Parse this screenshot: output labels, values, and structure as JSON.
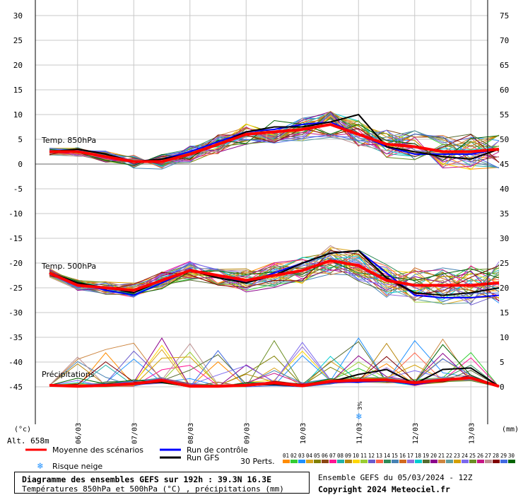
{
  "chart_data": {
    "type": "line",
    "x_dates": [
      "06/03",
      "07/03",
      "08/03",
      "09/03",
      "10/03",
      "11/03",
      "12/03",
      "13/03"
    ],
    "left_axis": {
      "unit_label": "(°c)",
      "ticks": [
        30,
        25,
        20,
        15,
        10,
        5,
        0,
        -5,
        -10,
        -15,
        -20,
        -25,
        -30,
        -35,
        -40,
        -45
      ],
      "range": [
        -45,
        30
      ]
    },
    "right_axis": {
      "unit_label": "(mm)",
      "ticks": [
        75,
        70,
        65,
        60,
        55,
        50,
        45,
        40,
        35,
        30,
        25,
        20,
        15,
        10,
        5,
        0
      ]
    },
    "panel_labels": {
      "t850": "Temp. 850hPa",
      "t500": "Temp. 500hPa",
      "precip": "Précipitations"
    },
    "altitude": "Alt. 658m",
    "snow_risk_annotation": "3%",
    "x_hours": [
      0,
      12,
      24,
      36,
      48,
      60,
      72,
      84,
      96,
      108,
      120,
      132,
      144,
      156,
      168,
      180,
      192
    ],
    "t850_mean": [
      2.5,
      2.5,
      1.5,
      0.5,
      0.5,
      2,
      4,
      6,
      6.5,
      7,
      8,
      6,
      4,
      3.5,
      2.5,
      2.5,
      3
    ],
    "t850_control": [
      2.5,
      2.5,
      1.5,
      0.5,
      1,
      2.5,
      4.5,
      6.5,
      7,
      8,
      8.5,
      6,
      3.5,
      2,
      2,
      2,
      3
    ],
    "t850_gfs": [
      2.5,
      3,
      2,
      0.5,
      1,
      2,
      4,
      6.5,
      7.5,
      7.5,
      8.5,
      10,
      3.5,
      2.5,
      1.5,
      1,
      3
    ],
    "t500_mean": [
      -22,
      -24.5,
      -25,
      -25.5,
      -23.5,
      -21.5,
      -22.5,
      -23.5,
      -22.5,
      -21.5,
      -19.5,
      -20.5,
      -23.5,
      -24.5,
      -24.5,
      -24.5,
      -24
    ],
    "t500_control": [
      -22,
      -24,
      -25.5,
      -26.5,
      -24,
      -21.5,
      -22.5,
      -24,
      -22,
      -20,
      -18,
      -17.5,
      -22,
      -26.5,
      -27,
      -27,
      -26.5
    ],
    "t500_gfs": [
      -22,
      -24,
      -25,
      -26,
      -23.5,
      -21.5,
      -23,
      -24,
      -22.5,
      -20,
      -18,
      -17.5,
      -23,
      -26,
      -26.5,
      -26,
      -25
    ],
    "precip_mean": [
      0.3,
      0.1,
      0.3,
      0.6,
      1.3,
      0.1,
      0.1,
      0.3,
      0.8,
      0.2,
      1.1,
      1.3,
      1.4,
      0.8,
      1.4,
      1.8,
      0.1
    ],
    "precip_control": [
      0.3,
      0.2,
      0.5,
      0.5,
      1.2,
      0.1,
      0.1,
      0.2,
      0.6,
      0.1,
      0.9,
      1.0,
      1.2,
      0.5,
      1.3,
      2.0,
      0.1
    ],
    "precip_gfs": [
      0.3,
      0.1,
      0.2,
      0.5,
      1.0,
      0.1,
      0.1,
      0.3,
      0.5,
      0.1,
      1.0,
      2.5,
      3.5,
      0.6,
      3.5,
      3.8,
      0.1
    ],
    "legend": {
      "mean": {
        "label": "Moyenne des scénarios",
        "color": "#ff0000"
      },
      "control": {
        "label": "Run de contrôle",
        "color": "#0000ff"
      },
      "gfs": {
        "label": "Run GFS",
        "color": "#000000"
      },
      "snow": {
        "label": "Risque neige"
      },
      "perts_label": "30 Perts.",
      "perts_ids": [
        "01",
        "02",
        "03",
        "04",
        "05",
        "06",
        "07",
        "08",
        "09",
        "10",
        "11",
        "12",
        "13",
        "14",
        "15",
        "16",
        "17",
        "18",
        "19",
        "20",
        "21",
        "22",
        "23",
        "24",
        "25",
        "26",
        "27",
        "28",
        "29",
        "30"
      ],
      "perts_colors": [
        "#ff8c00",
        "#32cd32",
        "#1e90ff",
        "#daa520",
        "#808000",
        "#8b4513",
        "#ff1493",
        "#20b2aa",
        "#b8860b",
        "#ffd700",
        "#9acd32",
        "#6a5acd",
        "#ff6347",
        "#2e8b57",
        "#4682b4",
        "#d2691e",
        "#9370db",
        "#00ced1",
        "#556b2f",
        "#8b008b",
        "#cd853f",
        "#5f9ea0",
        "#d4a000",
        "#7b68ee",
        "#6b8e23",
        "#c71585",
        "#bc8f8f",
        "#800000",
        "#4169e1",
        "#006400"
      ]
    }
  },
  "footer": {
    "title": "Diagramme des ensembles GEFS sur 192h : 39.3N 16.3E",
    "subtitle": "Températures 850hPa et 500hPa (°C) , précipitations (mm)",
    "ensemble_date": "Ensemble GEFS du 05/03/2024 - 12Z",
    "copyright": "Copyright 2024 Meteociel.fr"
  }
}
